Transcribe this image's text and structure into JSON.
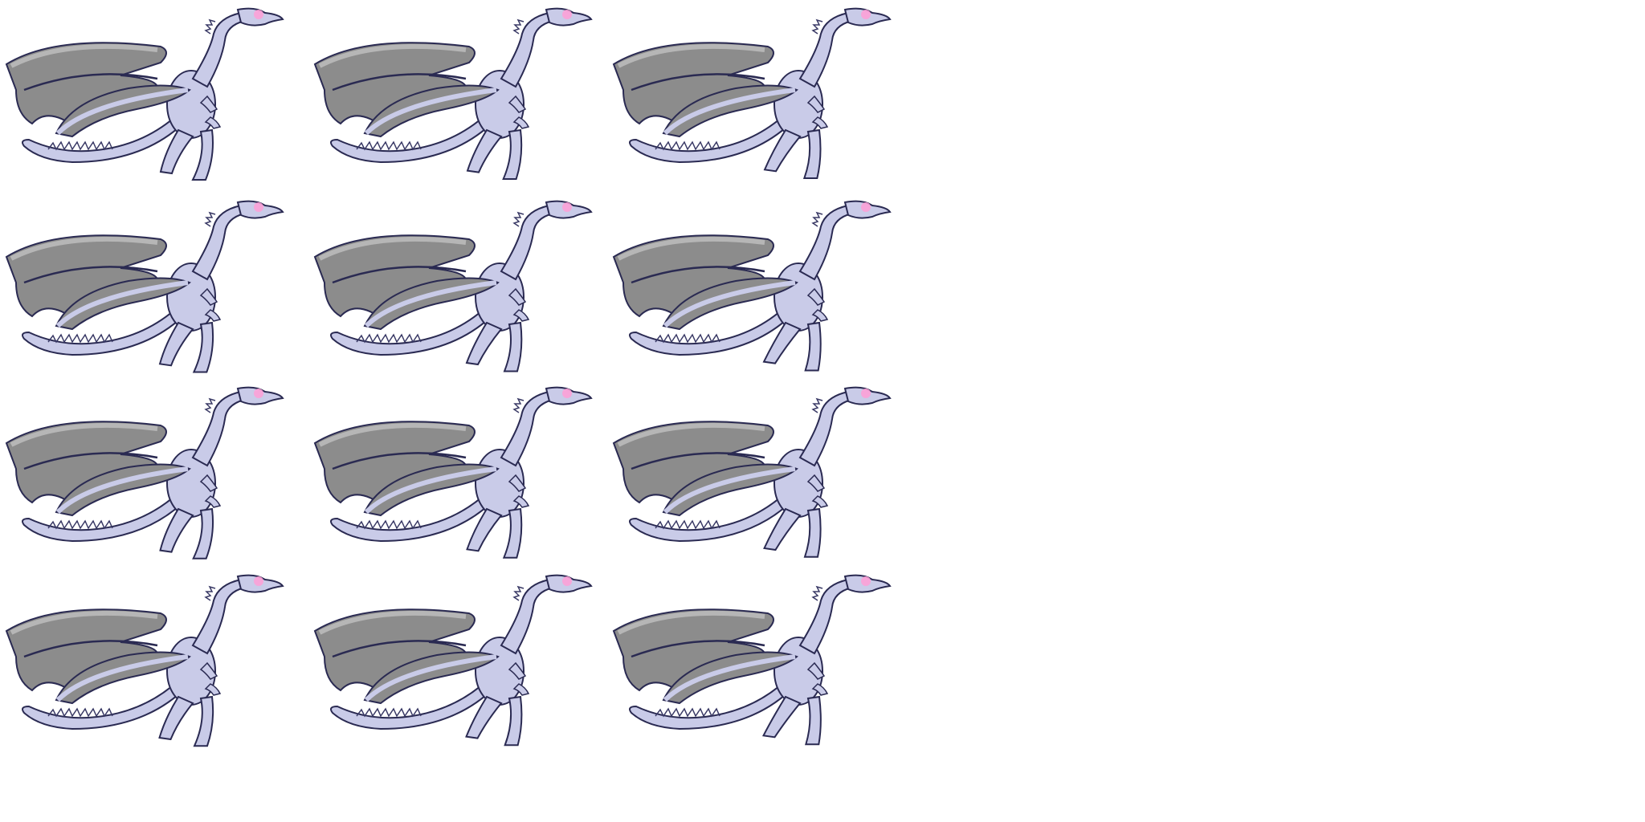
{
  "sprite_sheet": {
    "rows": 4,
    "columns": 3,
    "colors": {
      "background": "#ffffff",
      "wing_membrane": "#8c8c8c",
      "wing_highlight": "#c8c8c8",
      "body": "#c9cbe8",
      "outline": "#2a2a52",
      "spines": "#3a3a66",
      "head_glow": "#ff9fd6"
    },
    "frames": [
      {
        "row": 1,
        "col": 1,
        "icon": "dragon-sprite-icon"
      },
      {
        "row": 1,
        "col": 2,
        "icon": "dragon-sprite-icon"
      },
      {
        "row": 1,
        "col": 3,
        "icon": "dragon-sprite-icon"
      },
      {
        "row": 2,
        "col": 1,
        "icon": "dragon-sprite-icon"
      },
      {
        "row": 2,
        "col": 2,
        "icon": "dragon-sprite-icon"
      },
      {
        "row": 2,
        "col": 3,
        "icon": "dragon-sprite-icon"
      },
      {
        "row": 3,
        "col": 1,
        "icon": "dragon-sprite-icon"
      },
      {
        "row": 3,
        "col": 2,
        "icon": "dragon-sprite-icon"
      },
      {
        "row": 3,
        "col": 3,
        "icon": "dragon-sprite-icon"
      },
      {
        "row": 4,
        "col": 1,
        "icon": "dragon-sprite-icon"
      },
      {
        "row": 4,
        "col": 2,
        "icon": "dragon-sprite-icon"
      },
      {
        "row": 4,
        "col": 3,
        "icon": "dragon-sprite-icon"
      }
    ]
  }
}
